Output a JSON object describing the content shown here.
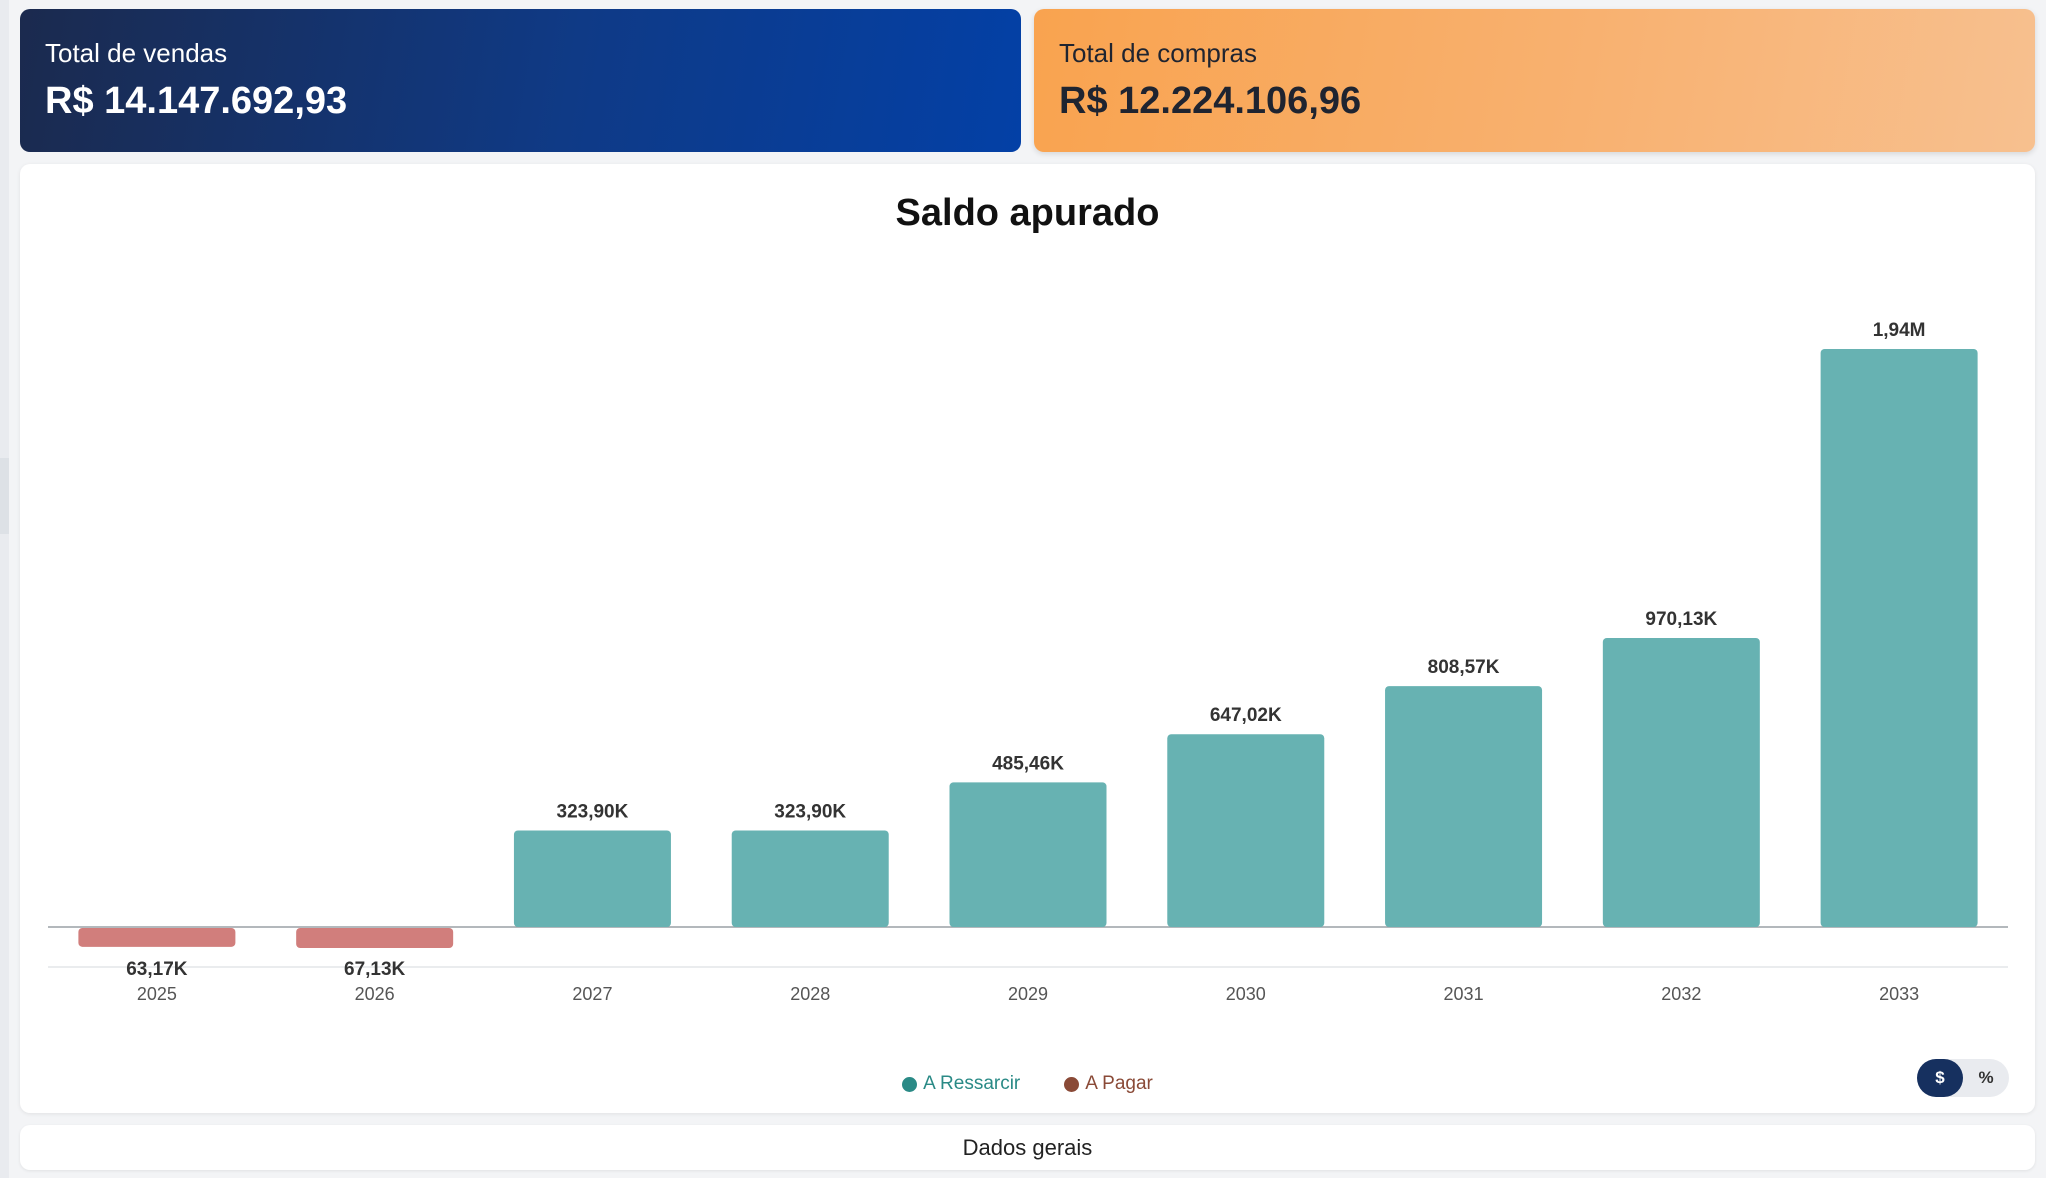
{
  "kpis": {
    "sales": {
      "label": "Total de vendas",
      "value": "R$ 14.147.692,93"
    },
    "purchases": {
      "label": "Total de compras",
      "value": "R$ 12.224.106,96"
    }
  },
  "chart": {
    "title": "Saldo apurado",
    "legend": [
      {
        "label": "A Ressarcir",
        "color": "#2a8a86"
      },
      {
        "label": "A Pagar",
        "color": "#8a4a37"
      }
    ],
    "toggle": {
      "options": [
        "$",
        "%"
      ],
      "active": "$"
    }
  },
  "chart_data": {
    "type": "bar",
    "title": "Saldo apurado",
    "categories": [
      "2025",
      "2026",
      "2027",
      "2028",
      "2029",
      "2030",
      "2031",
      "2032",
      "2033"
    ],
    "values": [
      -63.17,
      -67.13,
      323.9,
      323.9,
      485.46,
      647.02,
      808.57,
      970.13,
      1940
    ],
    "units": "thousands of R$",
    "data_labels": [
      "63,17K",
      "67,13K",
      "323,90K",
      "323,90K",
      "485,46K",
      "647,02K",
      "808,57K",
      "970,13K",
      "1,94M"
    ],
    "series_colors": {
      "positive": "#67b2b2",
      "negative": "#d17e7c"
    },
    "xlabel": "",
    "ylabel": "",
    "ylim": [
      -67.13,
      1940
    ],
    "grid": false
  },
  "footer": {
    "label": "Dados gerais"
  }
}
